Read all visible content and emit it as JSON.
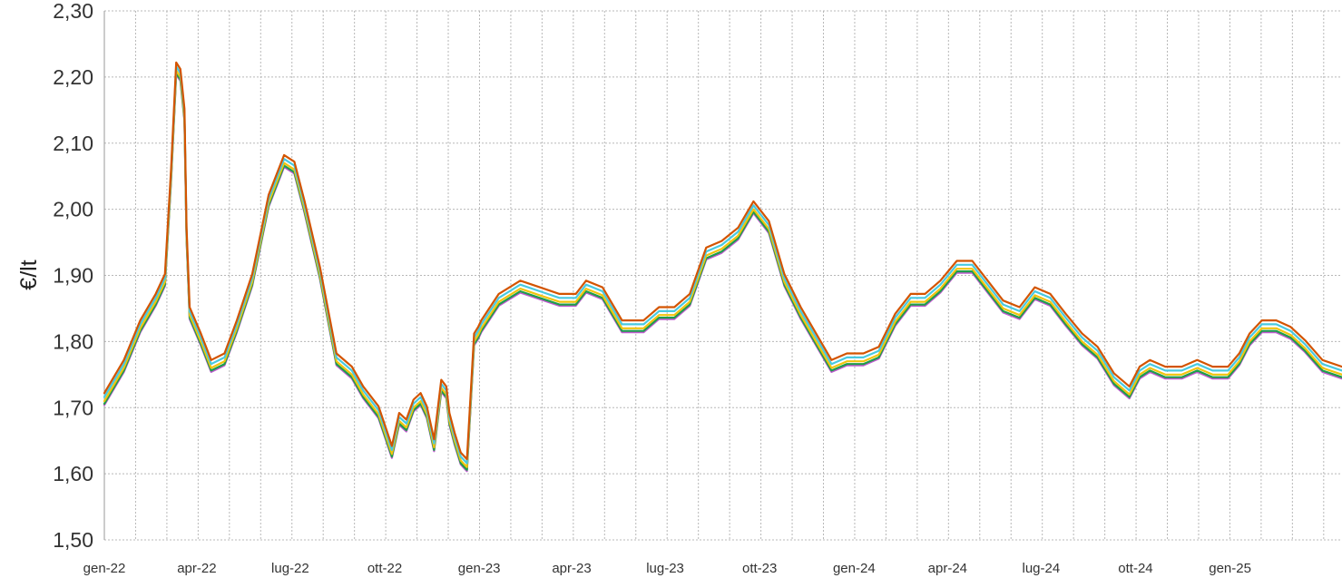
{
  "chart_data": {
    "type": "line",
    "title": "",
    "xlabel": "",
    "ylabel": "€/lt",
    "ylim": [
      1.5,
      2.3
    ],
    "xlim": [
      "2022-01-01",
      "2025-04-20"
    ],
    "grid": true,
    "y_ticks": [
      "1,50",
      "1,60",
      "1,70",
      "1,80",
      "1,90",
      "2,00",
      "2,10",
      "2,20",
      "2,30"
    ],
    "y_tick_values": [
      1.5,
      1.6,
      1.7,
      1.8,
      1.9,
      2.0,
      2.1,
      2.2,
      2.3
    ],
    "x_ticks": [
      "gen-22",
      "apr-22",
      "lug-22",
      "ott-22",
      "gen-23",
      "apr-23",
      "lug-23",
      "ott-23",
      "gen-24",
      "apr-24",
      "lug-24",
      "ott-24",
      "gen-25"
    ],
    "x_tick_dates": [
      "2022-01-01",
      "2022-04-01",
      "2022-07-01",
      "2022-10-01",
      "2023-01-01",
      "2023-04-01",
      "2023-07-01",
      "2023-10-01",
      "2024-01-01",
      "2024-04-01",
      "2024-07-01",
      "2024-10-01",
      "2025-01-01"
    ],
    "base_series": {
      "dates": [
        "2022-01-01",
        "2022-01-20",
        "2022-02-05",
        "2022-02-20",
        "2022-03-01",
        "2022-03-07",
        "2022-03-12",
        "2022-03-16",
        "2022-03-20",
        "2022-03-22",
        "2022-03-25",
        "2022-04-05",
        "2022-04-15",
        "2022-04-28",
        "2022-05-10",
        "2022-05-25",
        "2022-06-10",
        "2022-06-25",
        "2022-07-05",
        "2022-07-15",
        "2022-07-30",
        "2022-08-15",
        "2022-08-30",
        "2022-09-10",
        "2022-09-25",
        "2022-10-08",
        "2022-10-15",
        "2022-10-22",
        "2022-10-29",
        "2022-11-05",
        "2022-11-11",
        "2022-11-18",
        "2022-11-25",
        "2022-11-30",
        "2022-12-03",
        "2022-12-08",
        "2022-12-14",
        "2022-12-20",
        "2022-12-27",
        "2022-12-31",
        "2023-01-03",
        "2023-01-20",
        "2023-02-10",
        "2023-03-01",
        "2023-03-20",
        "2023-04-05",
        "2023-04-15",
        "2023-05-01",
        "2023-05-20",
        "2023-06-10",
        "2023-06-25",
        "2023-07-10",
        "2023-07-25",
        "2023-08-10",
        "2023-08-25",
        "2023-09-10",
        "2023-09-25",
        "2023-10-10",
        "2023-10-25",
        "2023-11-10",
        "2023-11-25",
        "2023-12-10",
        "2023-12-25",
        "2024-01-10",
        "2024-01-25",
        "2024-02-10",
        "2024-02-25",
        "2024-03-10",
        "2024-03-25",
        "2024-04-10",
        "2024-04-25",
        "2024-05-10",
        "2024-05-25",
        "2024-06-10",
        "2024-06-25",
        "2024-07-10",
        "2024-07-25",
        "2024-08-10",
        "2024-08-25",
        "2024-09-10",
        "2024-09-25",
        "2024-10-05",
        "2024-10-15",
        "2024-10-30",
        "2024-11-15",
        "2024-11-30",
        "2024-12-15",
        "2024-12-30",
        "2025-01-10",
        "2025-01-20",
        "2025-02-01",
        "2025-02-15",
        "2025-03-01",
        "2025-03-15",
        "2025-04-01",
        "2025-04-20"
      ],
      "values": [
        1.71,
        1.76,
        1.82,
        1.86,
        1.89,
        2.05,
        2.21,
        2.2,
        2.14,
        1.96,
        1.84,
        1.8,
        1.76,
        1.77,
        1.82,
        1.89,
        2.01,
        2.07,
        2.06,
        2.0,
        1.9,
        1.77,
        1.75,
        1.72,
        1.69,
        1.63,
        1.68,
        1.67,
        1.7,
        1.71,
        1.69,
        1.64,
        1.73,
        1.72,
        1.68,
        1.65,
        1.62,
        1.61,
        1.8,
        1.81,
        1.82,
        1.86,
        1.88,
        1.87,
        1.86,
        1.86,
        1.88,
        1.87,
        1.82,
        1.82,
        1.84,
        1.84,
        1.86,
        1.93,
        1.94,
        1.96,
        2.0,
        1.97,
        1.89,
        1.84,
        1.8,
        1.76,
        1.77,
        1.77,
        1.78,
        1.83,
        1.86,
        1.86,
        1.88,
        1.91,
        1.91,
        1.88,
        1.85,
        1.84,
        1.87,
        1.86,
        1.83,
        1.8,
        1.78,
        1.74,
        1.72,
        1.75,
        1.76,
        1.75,
        1.75,
        1.76,
        1.75,
        1.75,
        1.77,
        1.8,
        1.82,
        1.82,
        1.81,
        1.79,
        1.76,
        1.75
      ]
    },
    "series_offsets": [
      0.012,
      0.006,
      0.0,
      -0.004,
      -0.006
    ],
    "series_colors": [
      "#d35400",
      "#48c9e0",
      "#f1c40f",
      "#1e9e4a",
      "#c05ad0"
    ]
  }
}
